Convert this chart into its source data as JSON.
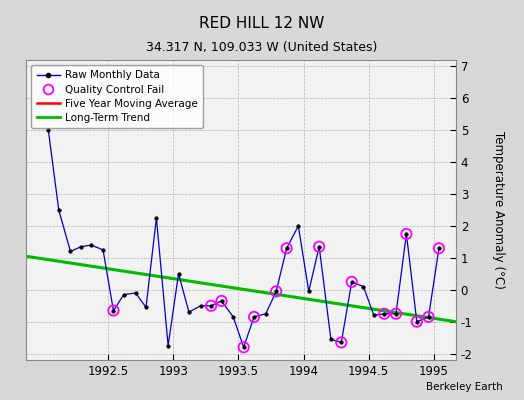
{
  "title": "RED HILL 12 NW",
  "subtitle": "34.317 N, 109.033 W (United States)",
  "credit": "Berkeley Earth",
  "ylabel": "Temperature Anomaly (°C)",
  "ylim": [
    -2.2,
    7.2
  ],
  "xlim": [
    1991.87,
    1995.17
  ],
  "xticks": [
    1992.5,
    1993.0,
    1993.5,
    1994.0,
    1994.5,
    1995.0
  ],
  "yticks": [
    -2,
    -1,
    0,
    1,
    2,
    3,
    4,
    5,
    6,
    7
  ],
  "bg_color": "#d8d8d8",
  "plot_bg_color": "#f2f2f2",
  "raw_x": [
    1992.04,
    1992.12,
    1992.21,
    1992.29,
    1992.37,
    1992.46,
    1992.54,
    1992.62,
    1992.71,
    1992.79,
    1992.87,
    1992.96,
    1993.04,
    1993.12,
    1993.21,
    1993.29,
    1993.37,
    1993.46,
    1993.54,
    1993.62,
    1993.71,
    1993.79,
    1993.87,
    1993.96,
    1994.04,
    1994.12,
    1994.21,
    1994.29,
    1994.37,
    1994.46,
    1994.54,
    1994.62,
    1994.71,
    1994.79,
    1994.87,
    1994.96,
    1995.04
  ],
  "raw_y": [
    5.0,
    2.5,
    1.2,
    1.35,
    1.4,
    1.25,
    -0.65,
    -0.15,
    -0.1,
    -0.55,
    2.25,
    -1.75,
    0.5,
    -0.7,
    -0.5,
    -0.5,
    -0.35,
    -0.85,
    -1.8,
    -0.85,
    -0.75,
    -0.05,
    1.3,
    2.0,
    -0.05,
    1.35,
    -1.55,
    -1.65,
    0.25,
    0.1,
    -0.8,
    -0.75,
    -0.75,
    1.75,
    -1.0,
    -0.85,
    1.3
  ],
  "qc_fail_x": [
    1992.54,
    1993.29,
    1993.37,
    1993.54,
    1993.62,
    1993.79,
    1993.87,
    1994.12,
    1994.29,
    1994.37,
    1994.62,
    1994.71,
    1994.79,
    1994.87,
    1994.96,
    1995.04
  ],
  "qc_fail_y": [
    -0.65,
    -0.5,
    -0.35,
    -1.8,
    -0.85,
    -0.05,
    1.3,
    1.35,
    -1.65,
    0.25,
    -0.75,
    -0.75,
    1.75,
    -1.0,
    -0.85,
    1.3
  ],
  "trend_x": [
    1991.87,
    1995.17
  ],
  "trend_y": [
    1.05,
    -1.0
  ],
  "raw_line_color": "#0000cc",
  "raw_marker_face": "#000000",
  "raw_marker_edge": "#000000",
  "qc_color": "#ff00ff",
  "trend_color": "#00bb00",
  "ma_color": "#ff0000",
  "legend_labels": [
    "Raw Monthly Data",
    "Quality Control Fail",
    "Five Year Moving Average",
    "Long-Term Trend"
  ]
}
